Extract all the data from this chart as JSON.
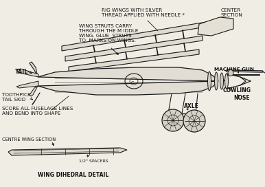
{
  "background_color": "#f0ede5",
  "line_color": "#1a1a1a",
  "text_color": "#111111",
  "labels": {
    "rig_wings": "RIG WINGS WITH SILVER\nTHREAD APPLIED WITH NEEDLE *",
    "wing_struts": "WING STRUTS CARRY\nTHROUGH THE M IDDLE\nWING. GLUE  STRUTS\nTO  MARKS ON WINGS.",
    "center_section": "CENTER\nSECTION",
    "tail": "TAIL",
    "machine_gun": "MACHINE GUN",
    "toothpick": "TOOTHPICK\nTAIL SKID",
    "cowling": "COWLING",
    "score": "SCORE ALL FUSELAGE LINES\nAND BEND INTO SHAPE",
    "nose": "NOSE",
    "centre_wing": "CENTRE WING SECTION",
    "axle": "AXLE",
    "spacers": "1/2\" SPACERS",
    "wing_dihedral": "WING DIHEDRAL DETAIL"
  },
  "figsize": [
    3.86,
    2.72
  ],
  "dpi": 100
}
